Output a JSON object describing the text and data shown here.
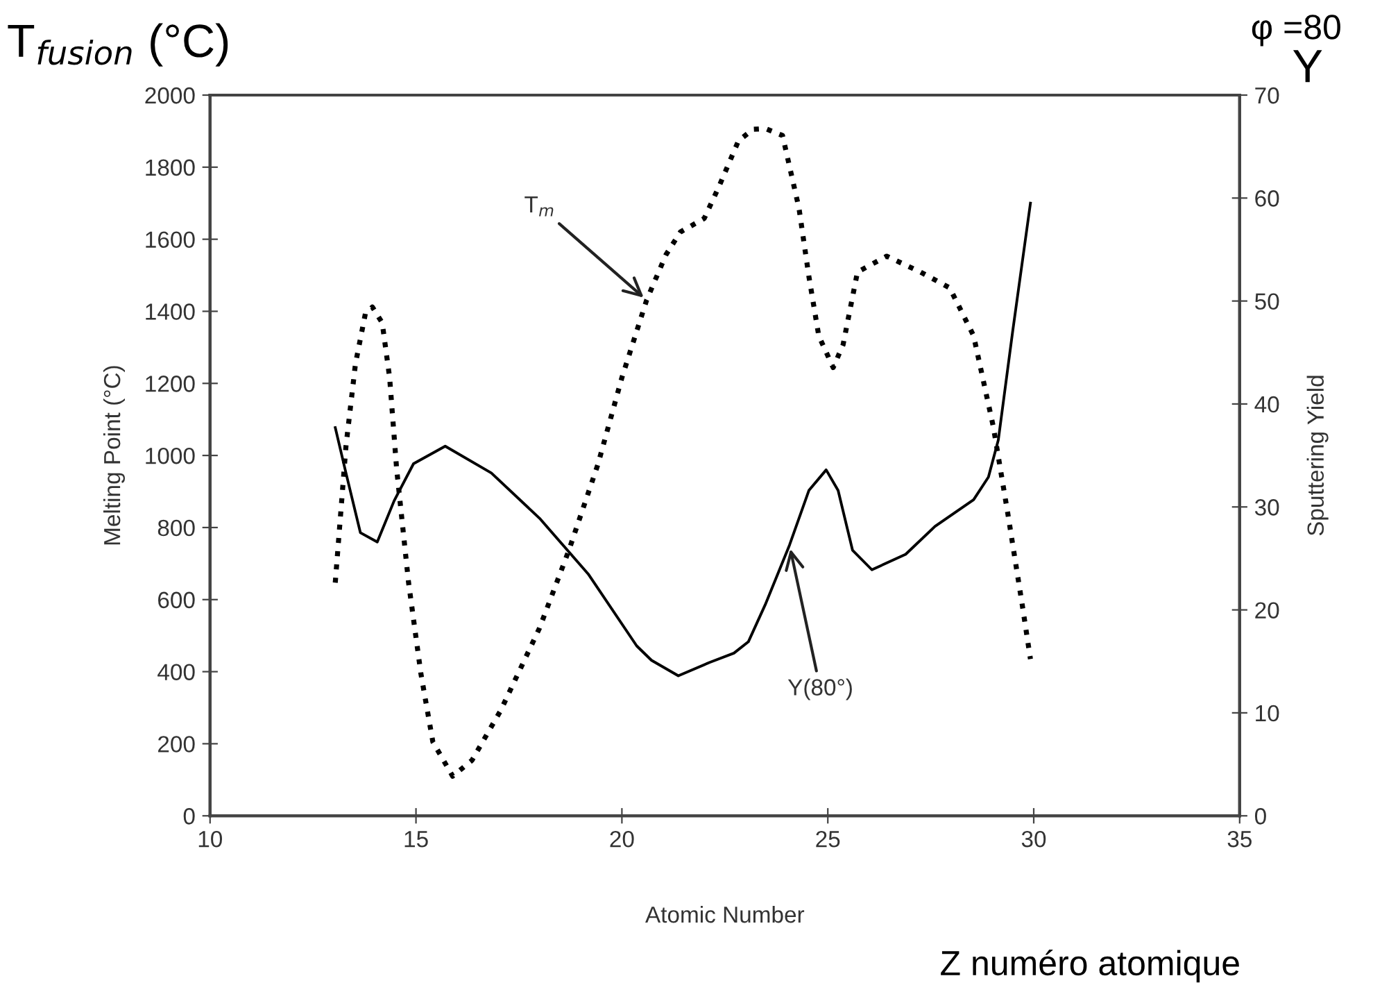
{
  "chart_data": {
    "type": "line",
    "xlabel": "Atomic Number",
    "ylabel": "Melting Point (°C)",
    "y2label": "Sputtering Yield",
    "xlim": [
      10,
      35
    ],
    "xticks": [
      10,
      15,
      20,
      25,
      30,
      35
    ],
    "ylim": [
      0,
      2000
    ],
    "yticks": [
      0,
      200,
      400,
      600,
      800,
      1000,
      1200,
      1400,
      1600,
      1800,
      2000
    ],
    "y2lim": [
      0,
      70
    ],
    "y2ticks": [
      0,
      10,
      20,
      30,
      40,
      50,
      60,
      70
    ],
    "grid": false,
    "legend": false,
    "series": [
      {
        "color": "#000000",
        "line_style": "dotted",
        "x": [
          13.04,
          13.3,
          13.53,
          13.77,
          13.94,
          14.18,
          14.36,
          14.53,
          14.82,
          15.12,
          15.41,
          15.89,
          16.36,
          17.06,
          18.0,
          18.71,
          19.42,
          20.0,
          20.6,
          21.07,
          21.42,
          22.0,
          22.36,
          22.83,
          23.18,
          23.49,
          23.9,
          24.3,
          24.54,
          24.78,
          25.13,
          25.37,
          25.72,
          26.43,
          27.25,
          27.96,
          28.54,
          29.02,
          29.37,
          29.72,
          29.92
        ],
        "values": [
          647,
          1026,
          1254,
          1393,
          1412,
          1368,
          1216,
          963,
          647,
          394,
          205,
          110,
          154,
          293,
          521,
          736,
          976,
          1216,
          1431,
          1557,
          1620,
          1658,
          1747,
          1873,
          1905,
          1907,
          1888,
          1686,
          1497,
          1332,
          1244,
          1307,
          1509,
          1553,
          1509,
          1465,
          1332,
          1079,
          839,
          586,
          435
        ]
      },
      {
        "color": "#000000",
        "line_style": "solid",
        "axis": "y2",
        "x": [
          13.04,
          13.3,
          13.65,
          14.06,
          14.47,
          14.94,
          15.71,
          16.83,
          18.0,
          19.18,
          20.36,
          20.72,
          21.37,
          22.13,
          22.72,
          23.07,
          23.48,
          24.07,
          24.54,
          24.96,
          25.25,
          25.6,
          26.07,
          26.89,
          27.6,
          28.54,
          28.9,
          29.14,
          29.49,
          29.92
        ],
        "values": [
          37.7,
          33.3,
          27.5,
          26.6,
          30.6,
          34.2,
          35.9,
          33.3,
          28.9,
          23.5,
          16.5,
          15.1,
          13.6,
          14.9,
          15.8,
          16.9,
          20.5,
          26.3,
          31.6,
          33.6,
          31.6,
          25.8,
          23.9,
          25.4,
          28.1,
          30.7,
          32.9,
          36.5,
          47.1,
          59.5
        ]
      }
    ],
    "annotations": [
      {
        "text": "T$_{m}$",
        "x": 20.6,
        "y": 1431
      },
      {
        "text": "Y(80°)",
        "x": 24.07,
        "y": 751
      },
      "T$_{fusion}$ (°C)",
      "Y",
      "φ =80",
      "Z numéro atomique"
    ]
  }
}
